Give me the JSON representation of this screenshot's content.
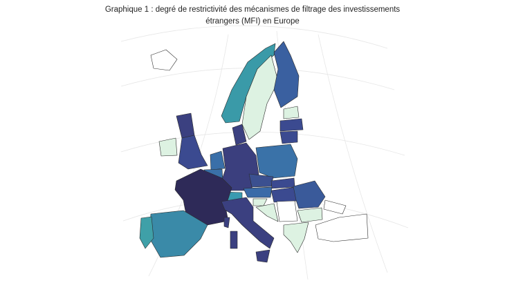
{
  "title": "Graphique 1 : degré de restrictivité des mécanismes de filtrage des investissements étrangers (MFI) en Europe"
}
